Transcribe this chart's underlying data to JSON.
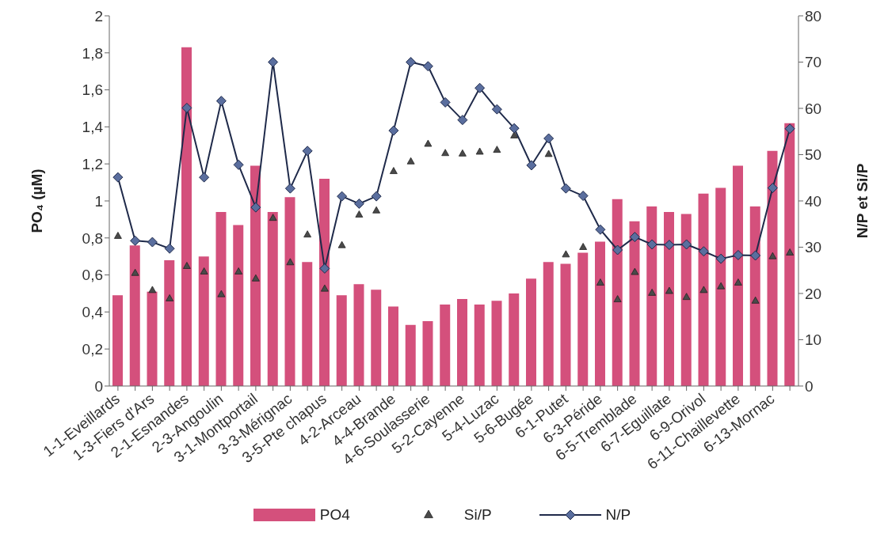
{
  "chart_data": {
    "type": "bar",
    "ylabel": "PO₄ (µM)",
    "y2label": "N/P et Si/P",
    "categories": [
      "1-1-Eveillards",
      null,
      "1-3-Fiers d'Ars",
      null,
      "2-1-Esnandes",
      null,
      "2-3-Angoulin",
      null,
      "3-1-Montportail",
      null,
      "3-3-Mérignac",
      null,
      "3-5-Pte chapus",
      null,
      "4-2-Arceau",
      null,
      "4-4-Brande",
      null,
      "4-6-Soulasserie",
      null,
      "5-2-Cayenne",
      null,
      "5-4-Luzac",
      null,
      "5-6-Bugée",
      null,
      "6-1-Putet",
      null,
      "6-3-Péride",
      null,
      "6-5-Tremblade",
      null,
      "6-7-Eguillate",
      null,
      "6-9-Orivol",
      null,
      "6-11-Chaillevette",
      null,
      "6-13-Mornac",
      null
    ],
    "series": [
      {
        "name": "PO4",
        "color": "#d4507c",
        "values": [
          0.49,
          0.76,
          0.51,
          0.68,
          1.83,
          0.7,
          0.94,
          0.87,
          1.19,
          0.94,
          1.02,
          0.67,
          1.12,
          0.49,
          0.55,
          0.52,
          0.43,
          0.33,
          0.35,
          0.44,
          0.47,
          0.44,
          0.46,
          0.5,
          0.58,
          0.67,
          0.66,
          0.72,
          0.78,
          1.01,
          0.89,
          0.97,
          0.94,
          0.93,
          1.04,
          1.07,
          1.19,
          0.97,
          1.27,
          1.42
        ]
      },
      {
        "name": "Si/P",
        "type": "scatter",
        "axis": "y2",
        "marker": "triangle",
        "color": "#4a4a4a",
        "values": [
          32.4,
          24.4,
          20.7,
          18.9,
          25.9,
          24.7,
          19.8,
          24.7,
          23.2,
          36.3,
          26.7,
          32.7,
          21.0,
          30.4,
          37.0,
          37.9,
          46.4,
          48.5,
          52.3,
          50.3,
          50.2,
          50.6,
          51.0,
          54.1,
          null,
          50.1,
          28.4,
          30.0,
          22.3,
          18.7,
          24.6,
          20.1,
          20.5,
          19.2,
          20.7,
          21.5,
          22.3,
          18.4,
          28.0,
          28.8
        ]
      },
      {
        "name": "N/P",
        "type": "line",
        "axis": "y2",
        "marker": "diamond",
        "line_style": "solid",
        "color": "#1f2a4a",
        "values": [
          45.1,
          31.4,
          31.1,
          29.7,
          60.1,
          45.1,
          61.6,
          47.8,
          38.6,
          70.0,
          42.7,
          50.8,
          25.4,
          41.0,
          39.4,
          41.0,
          55.2,
          70.0,
          69.1,
          61.3,
          57.5,
          64.4,
          59.8,
          55.7,
          47.7,
          53.5,
          42.7,
          41.1,
          33.8,
          29.4,
          32.2,
          30.6,
          30.5,
          30.6,
          29.1,
          27.5,
          28.3,
          28.2,
          42.8,
          55.6
        ]
      }
    ],
    "ylim": [
      0,
      2
    ],
    "yticks": [
      0,
      {
        "value": 0.2,
        "label": "0,2"
      },
      {
        "value": 0.4,
        "label": "0,4"
      },
      {
        "value": 0.6,
        "label": "0,6"
      },
      {
        "value": 0.8,
        "label": "0,8"
      },
      1,
      {
        "value": 1.2,
        "label": "1,2"
      },
      {
        "value": 1.4,
        "label": "1,4"
      },
      {
        "value": 1.6,
        "label": "1,6"
      },
      {
        "value": 1.8,
        "label": "1,8"
      },
      2
    ],
    "y2lim": [
      0,
      80
    ],
    "y2ticks": [
      0,
      10,
      20,
      30,
      40,
      50,
      60,
      70,
      80
    ],
    "grid": false,
    "legend": "bottom"
  }
}
